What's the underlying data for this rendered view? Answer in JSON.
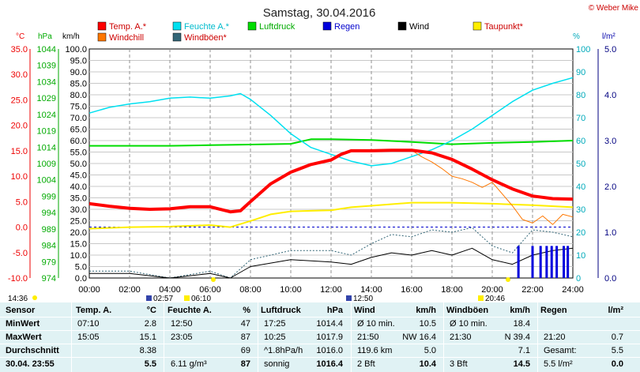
{
  "title": "Samstag, 30.04.2016",
  "copyright": "© Weber Mike",
  "units": {
    "temp": "°C",
    "press": "hPa",
    "wind": "km/h",
    "hum": "%",
    "rain": "l/m²"
  },
  "legend": [
    {
      "label": "Temp. A.*",
      "color": "#ff0000"
    },
    {
      "label": "Feuchte A.*",
      "color": "#00e0f0"
    },
    {
      "label": "Luftdruck",
      "color": "#00dd00"
    },
    {
      "label": "Regen",
      "color": "#0000dd"
    },
    {
      "label": "Wind",
      "color": "#000000"
    },
    {
      "label": "Taupunkt*",
      "color": "#ffee00"
    },
    {
      "label": "Windchill",
      "color": "#ff7700"
    },
    {
      "label": "Windböen*",
      "color": "#336677"
    }
  ],
  "axes": {
    "temp_ticks": [
      "35.0",
      "30.0",
      "25.0",
      "20.0",
      "15.0",
      "10.0",
      "5.0",
      "0.0",
      "-5.0",
      "-10.0"
    ],
    "press_ticks": [
      "1044",
      "1039",
      "1034",
      "1029",
      "1024",
      "1019",
      "1014",
      "1009",
      "1004",
      "999",
      "994",
      "989",
      "984",
      "979",
      "974"
    ],
    "wind_ticks": [
      "100.0",
      "95.0",
      "90.0",
      "85.0",
      "80.0",
      "75.0",
      "70.0",
      "65.0",
      "60.0",
      "55.0",
      "50.0",
      "45.0",
      "40.0",
      "35.0",
      "30.0",
      "25.0",
      "20.0",
      "15.0",
      "10.0",
      "5.0",
      "0.0"
    ],
    "hum_ticks": [
      "100",
      "90",
      "80",
      "70",
      "60",
      "50",
      "40",
      "30",
      "20",
      "10",
      "0"
    ],
    "rain_ticks": [
      "5.0",
      "4.0",
      "3.0",
      "2.0",
      "1.0",
      "0.0"
    ],
    "time_ticks": [
      "00:00",
      "02:00",
      "04:00",
      "06:00",
      "08:00",
      "10:00",
      "12:00",
      "14:00",
      "16:00",
      "18:00",
      "20:00",
      "22:00",
      "24:00"
    ]
  },
  "markers": {
    "left_time": "14:36",
    "sunrise": "02:57",
    "sunrise2": "06:10",
    "sun_mid": "12:50",
    "sunset": "20:46"
  },
  "chart_data": {
    "type": "line",
    "title": "Samstag, 30.04.2016",
    "x_unit": "hours",
    "xlim": [
      0,
      24
    ],
    "ylim_wind": [
      0,
      100
    ],
    "series": [
      {
        "name": "Temp. A.*",
        "axis": "temp",
        "ylim": [
          -10,
          35
        ],
        "x": [
          0,
          1,
          2,
          3,
          4,
          5,
          6,
          7,
          7.5,
          8,
          9,
          10,
          11,
          12,
          12.5,
          13,
          14,
          15,
          16,
          17,
          18,
          19,
          20,
          21,
          22,
          23,
          24
        ],
        "y": [
          4.6,
          4.1,
          3.7,
          3.5,
          3.6,
          4.0,
          4.0,
          3.0,
          3.2,
          5.0,
          8.5,
          10.8,
          12.3,
          13.2,
          14.3,
          15.0,
          15.0,
          15.1,
          15.1,
          14.6,
          13.3,
          11.4,
          9.3,
          7.5,
          6.1,
          5.6,
          5.5
        ]
      },
      {
        "name": "Feuchte A.*",
        "axis": "hum",
        "ylim": [
          0,
          100
        ],
        "x": [
          0,
          1,
          2,
          3,
          4,
          5,
          6,
          7,
          7.5,
          8,
          9,
          10,
          11,
          12,
          13,
          14,
          15,
          16,
          17,
          18,
          19,
          20,
          21,
          22,
          23,
          24
        ],
        "y": [
          72,
          74.5,
          76,
          77,
          78.5,
          79,
          78.5,
          79.5,
          80.5,
          78,
          71,
          63,
          57,
          54,
          51,
          49,
          50,
          53,
          56,
          60,
          65,
          71,
          77,
          82,
          85,
          87.5
        ]
      },
      {
        "name": "Luftdruck",
        "axis": "press",
        "ylim": [
          974,
          1044
        ],
        "x": [
          0,
          2,
          4,
          6,
          8,
          10,
          11,
          12,
          14,
          16,
          18,
          20,
          22,
          24
        ],
        "y": [
          1014.4,
          1014.4,
          1014.4,
          1014.6,
          1014.8,
          1015.0,
          1016.4,
          1016.4,
          1016.2,
          1015.6,
          1014.9,
          1015.3,
          1015.6,
          1016.0
        ]
      },
      {
        "name": "Taupunkt*",
        "axis": "temp",
        "ylim": [
          -10,
          35
        ],
        "x": [
          0,
          2,
          4,
          6,
          7,
          8,
          9,
          10,
          11,
          12,
          13,
          14,
          16,
          18,
          20,
          22,
          24
        ],
        "y": [
          -0.3,
          0.0,
          0.1,
          0.4,
          0.0,
          1.2,
          2.5,
          3.1,
          3.2,
          3.3,
          3.9,
          4.2,
          4.8,
          4.8,
          4.6,
          4.3,
          3.9
        ]
      },
      {
        "name": "Windchill",
        "axis": "temp",
        "ylim": [
          -10,
          35
        ],
        "x": [
          16,
          16.5,
          17,
          17.5,
          18,
          18.5,
          19,
          19.5,
          20,
          20.5,
          21,
          21.5,
          22,
          22.5,
          23,
          23.5,
          24
        ],
        "y": [
          15.1,
          13.8,
          12.8,
          11.5,
          10.0,
          9.5,
          8.8,
          7.8,
          8.8,
          6.5,
          4.2,
          1.5,
          0.8,
          2.2,
          0.5,
          2.5,
          2.0
        ]
      },
      {
        "name": "Wind",
        "axis": "wind",
        "ylim": [
          0,
          100
        ],
        "x": [
          0,
          2,
          4,
          6,
          7,
          8,
          10,
          12,
          13,
          14,
          15,
          16,
          17,
          18,
          19,
          20,
          21,
          22,
          23,
          24
        ],
        "y": [
          2,
          2,
          0,
          2,
          0,
          5,
          8,
          7,
          6,
          9,
          11,
          10,
          12,
          10,
          13,
          8,
          6,
          10,
          12,
          13
        ]
      },
      {
        "name": "Windböen*",
        "axis": "wind",
        "ylim": [
          0,
          100
        ],
        "x": [
          0,
          2,
          4,
          6,
          7,
          8,
          10,
          12,
          13,
          14,
          15,
          16,
          17,
          18,
          19,
          20,
          21,
          22,
          23,
          24
        ],
        "y": [
          3,
          3,
          0,
          3,
          0,
          8,
          12,
          12,
          10,
          15,
          19,
          18,
          21,
          20,
          22,
          14,
          11,
          21,
          20,
          18
        ]
      },
      {
        "name": "Regen",
        "axis": "rain",
        "ylim": [
          0,
          5
        ],
        "x": [
          21.3,
          22.0,
          22.4,
          22.7,
          22.95,
          23.2,
          23.55,
          23.75
        ],
        "y": [
          0.7,
          0.7,
          0.7,
          0.7,
          0.7,
          0.7,
          0.7,
          0.7
        ]
      }
    ]
  },
  "table": {
    "headers": {
      "sensor": "Sensor",
      "temp": "Temp. A.",
      "temp_unit": "°C",
      "hum": "Feuchte A.",
      "hum_unit": "%",
      "press": "Luftdruck",
      "press_unit": "hPa",
      "wind": "Wind",
      "wind_unit": "km/h",
      "gust": "Windböen",
      "gust_unit": "km/h",
      "rain": "Regen",
      "rain_unit": "l/m²"
    },
    "rows": {
      "min": {
        "label": "MinWert",
        "temp_t": "07:10",
        "temp_v": "2.8",
        "hum_t": "12:50",
        "hum_v": "47",
        "press_t": "17:25",
        "press_v": "1014.4",
        "wind_t": "Ø 10 min.",
        "wind_v": "10.5",
        "gust_t": "Ø 10 min.",
        "gust_v": "18.4",
        "rain_t": "",
        "rain_v": ""
      },
      "max": {
        "label": "MaxWert",
        "temp_t": "15:05",
        "temp_v": "15.1",
        "hum_t": "23:05",
        "hum_v": "87",
        "press_t": "10:25",
        "press_v": "1017.9",
        "wind_t": "21:50",
        "wind_v": "NW 16.4",
        "gust_t": "21:30",
        "gust_v": "N 39.4",
        "rain_t": "21:20",
        "rain_v": "0.7"
      },
      "avg": {
        "label": "Durchschnitt",
        "temp_t": "",
        "temp_v": "8.38",
        "hum_t": "",
        "hum_v": "69",
        "press_t": "^1.8hPa/h",
        "press_v": "1016.0",
        "wind_t": "119.6 km",
        "wind_v": "5.0",
        "gust_t": "",
        "gust_v": "7.1",
        "rain_t": "Gesamt:",
        "rain_v": "5.5"
      },
      "cur": {
        "label": "30.04. 23:55",
        "temp_t": "",
        "temp_v": "5.5",
        "hum_t": "6.11 g/m³",
        "hum_v": "87",
        "press_t": "sonnig",
        "press_v": "1016.4",
        "wind_t": "2 Bft",
        "wind_v": "10.4",
        "gust_t": "3 Bft",
        "gust_v": "14.5",
        "rain_t": "5.5 l/m²",
        "rain_v": "0.0"
      }
    }
  }
}
